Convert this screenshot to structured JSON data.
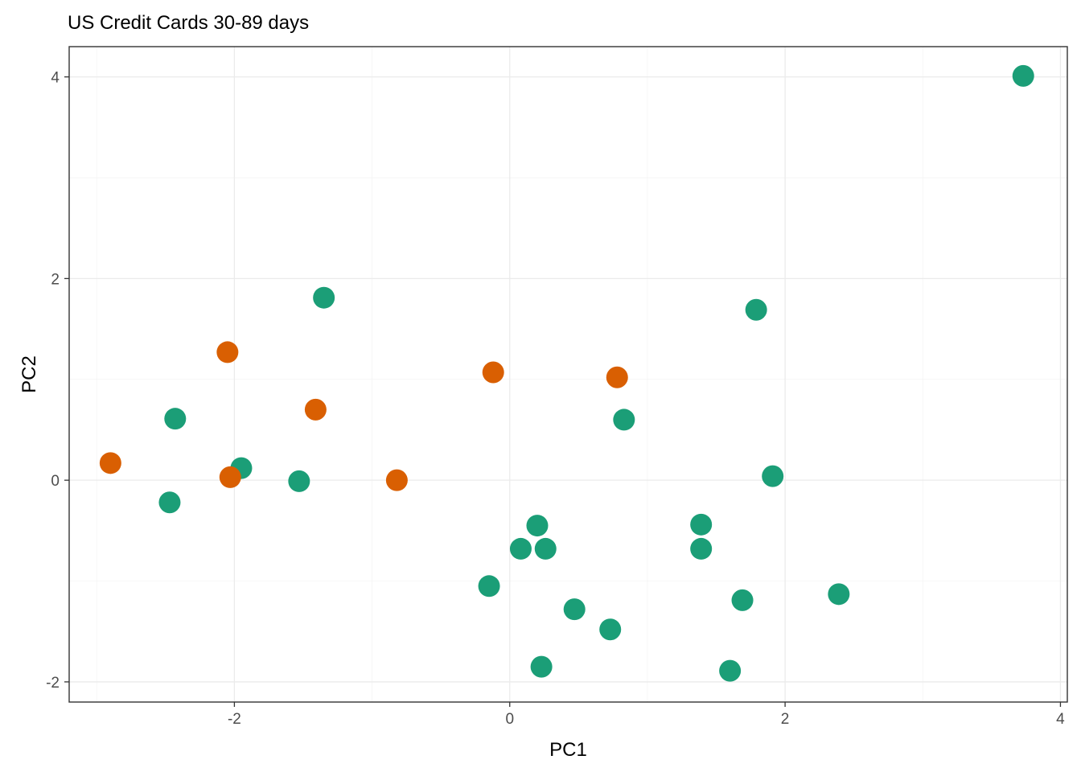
{
  "chart_data": {
    "type": "scatter",
    "title": "US Credit Cards 30-89 days",
    "xlabel": "PC1",
    "ylabel": "PC2",
    "xlim": [
      -3.2,
      4.05
    ],
    "ylim": [
      -2.2,
      4.3
    ],
    "x_ticks": [
      -2,
      0,
      2,
      4
    ],
    "y_ticks": [
      -2,
      0,
      2,
      4
    ],
    "grid": true,
    "legend": "none",
    "series": [
      {
        "color": "#1b9e77",
        "points": [
          {
            "x": 3.73,
            "y": 4.01
          },
          {
            "x": -1.35,
            "y": 1.81
          },
          {
            "x": 1.79,
            "y": 1.69
          },
          {
            "x": -2.43,
            "y": 0.61
          },
          {
            "x": 0.83,
            "y": 0.6
          },
          {
            "x": 1.91,
            "y": 0.04
          },
          {
            "x": -1.95,
            "y": 0.12
          },
          {
            "x": -1.53,
            "y": -0.01
          },
          {
            "x": -2.47,
            "y": -0.22
          },
          {
            "x": 0.2,
            "y": -0.45
          },
          {
            "x": 1.39,
            "y": -0.44
          },
          {
            "x": 0.08,
            "y": -0.68
          },
          {
            "x": 0.26,
            "y": -0.68
          },
          {
            "x": 1.39,
            "y": -0.68
          },
          {
            "x": -0.15,
            "y": -1.05
          },
          {
            "x": 1.69,
            "y": -1.19
          },
          {
            "x": 2.39,
            "y": -1.13
          },
          {
            "x": 0.47,
            "y": -1.28
          },
          {
            "x": 0.73,
            "y": -1.48
          },
          {
            "x": 0.23,
            "y": -1.85
          },
          {
            "x": 1.6,
            "y": -1.89
          }
        ]
      },
      {
        "color": "#d95f02",
        "points": [
          {
            "x": -2.05,
            "y": 1.27
          },
          {
            "x": -0.12,
            "y": 1.07
          },
          {
            "x": 0.78,
            "y": 1.02
          },
          {
            "x": -1.41,
            "y": 0.7
          },
          {
            "x": -2.9,
            "y": 0.17
          },
          {
            "x": -2.03,
            "y": 0.03
          },
          {
            "x": -0.82,
            "y": 0.0
          }
        ]
      }
    ]
  }
}
